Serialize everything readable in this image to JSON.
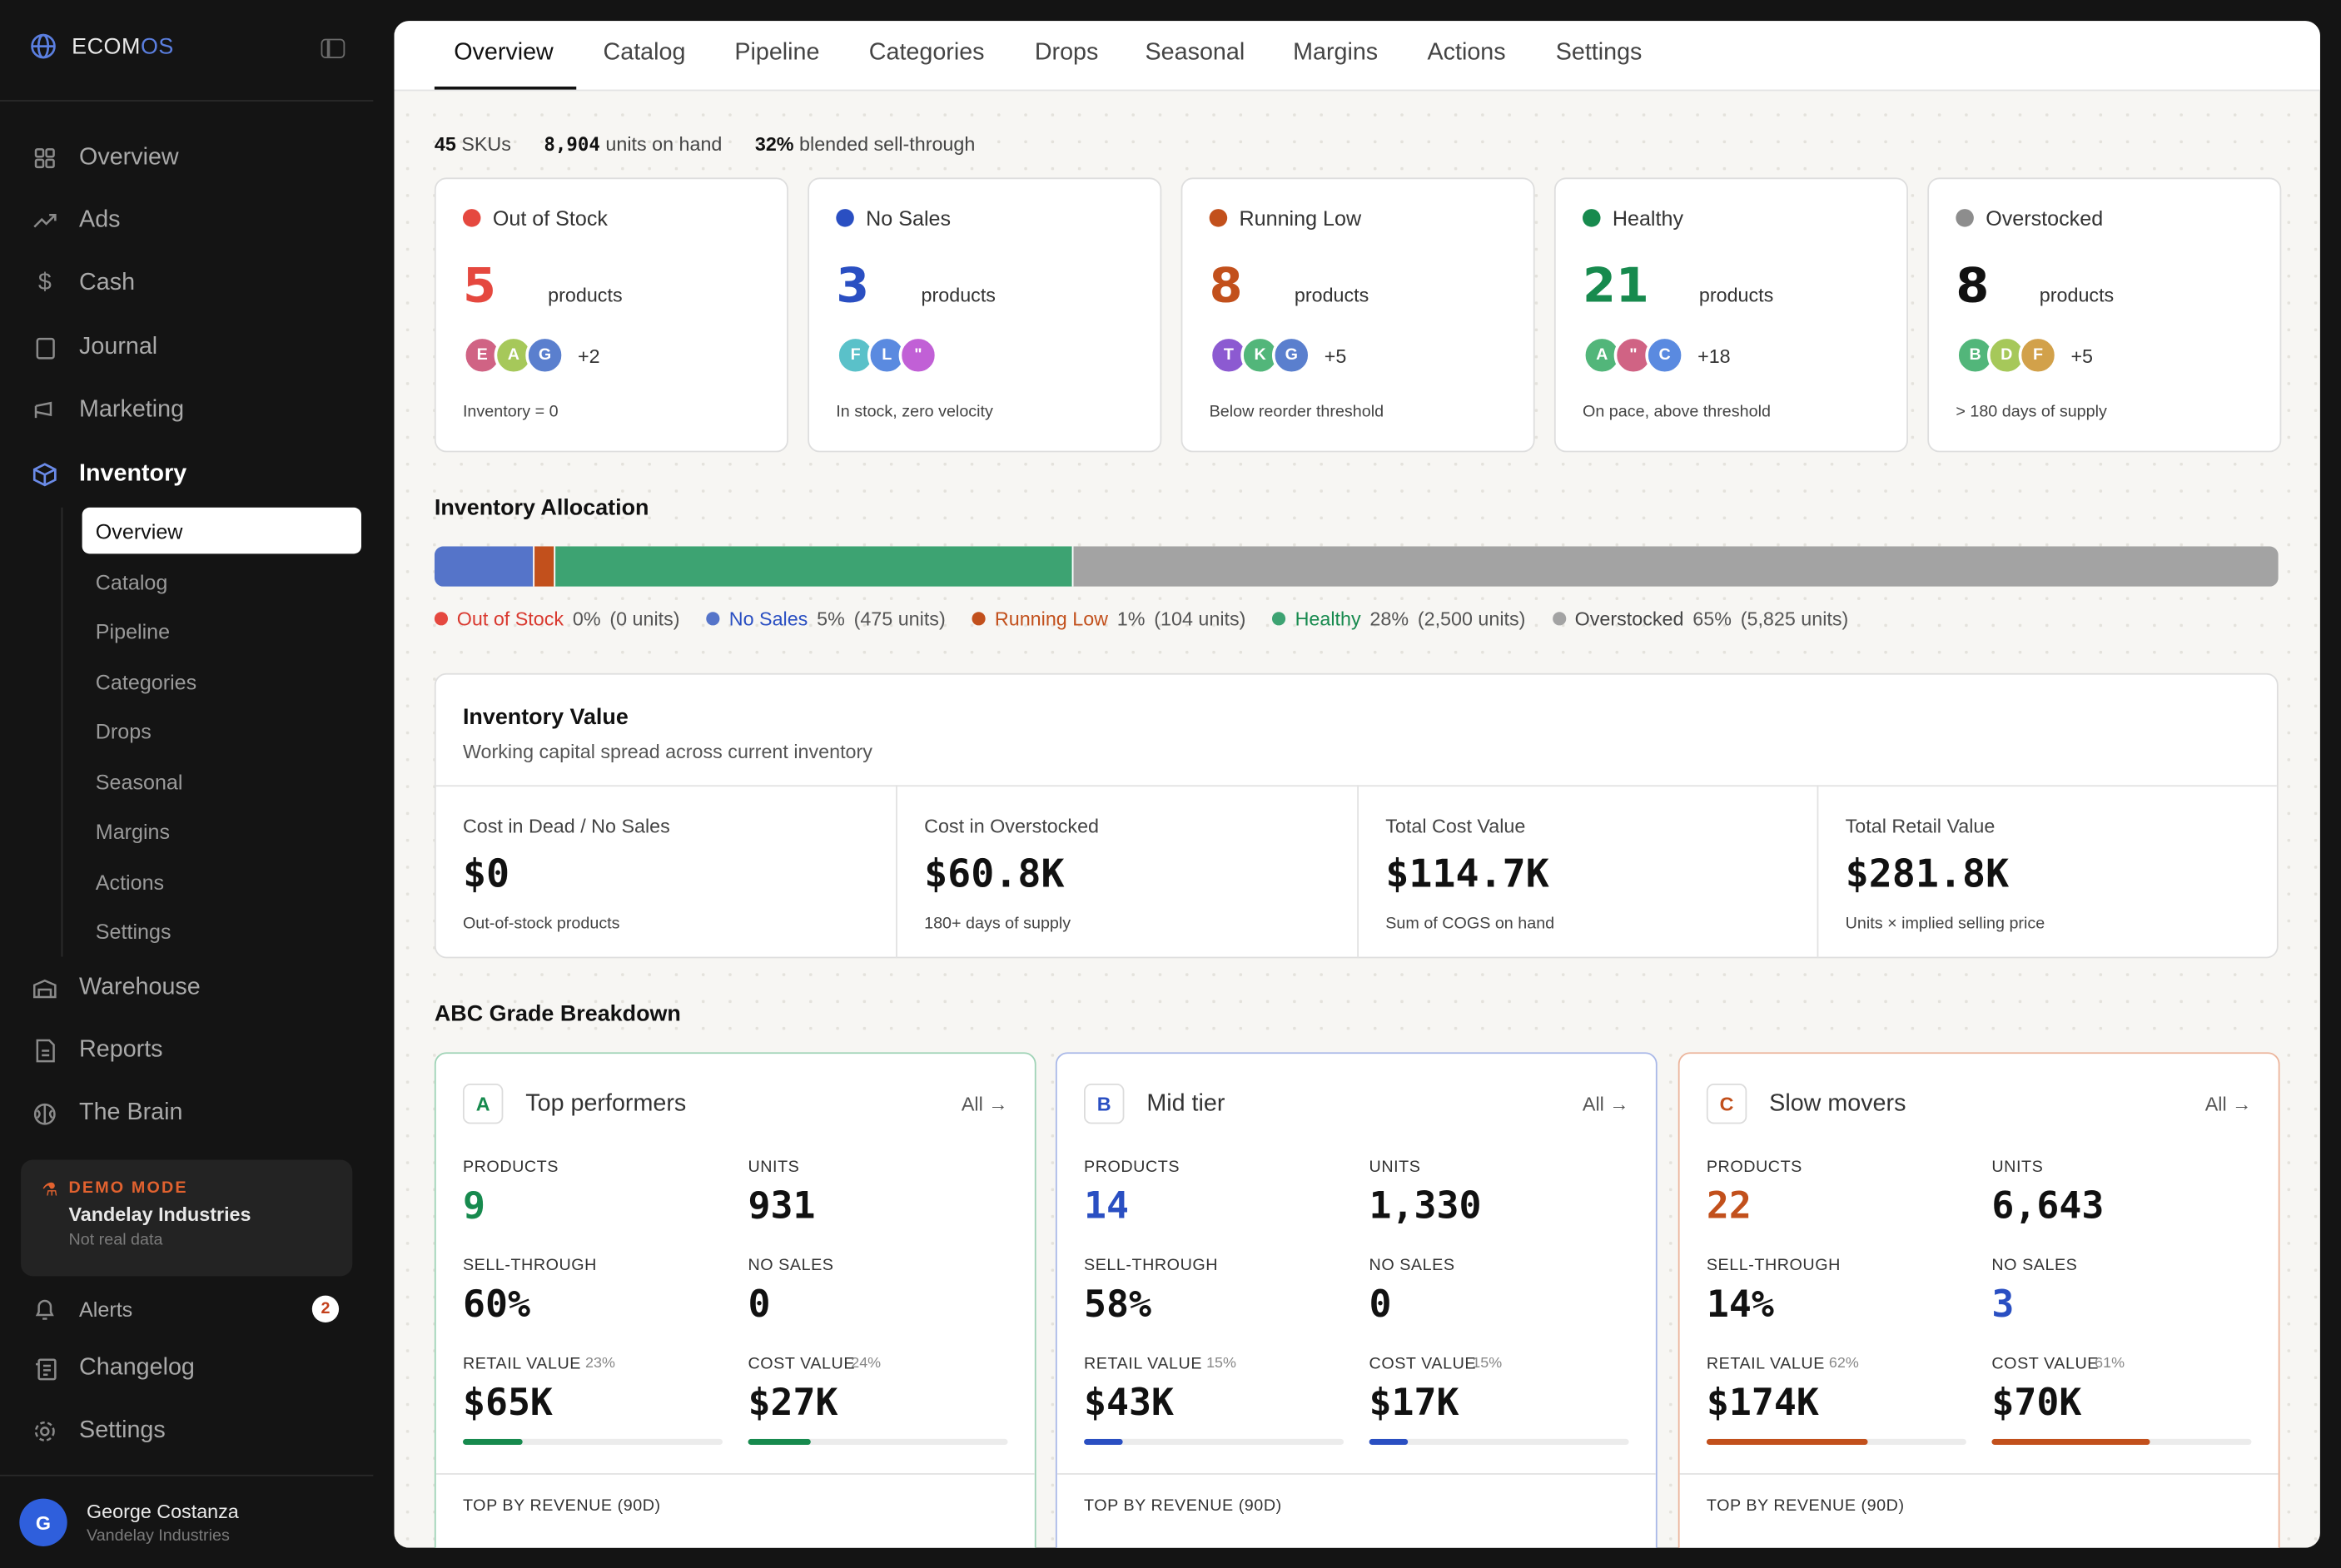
{
  "brand": {
    "prefix": "ECOM",
    "suffix": "OS"
  },
  "sidebar": {
    "items": [
      {
        "label": "Overview",
        "icon": "grid-icon"
      },
      {
        "label": "Ads",
        "icon": "trending-up-icon"
      },
      {
        "label": "Cash",
        "icon": "dollar-icon"
      },
      {
        "label": "Journal",
        "icon": "book-icon"
      },
      {
        "label": "Marketing",
        "icon": "megaphone-icon"
      },
      {
        "label": "Inventory",
        "icon": "box-icon"
      },
      {
        "label": "Warehouse",
        "icon": "warehouse-icon"
      },
      {
        "label": "Reports",
        "icon": "file-icon"
      },
      {
        "label": "The Brain",
        "icon": "brain-icon"
      },
      {
        "label": "Alerts",
        "icon": "bell-icon"
      },
      {
        "label": "Changelog",
        "icon": "changelog-icon"
      },
      {
        "label": "Settings",
        "icon": "gear-icon"
      }
    ],
    "sub_items": [
      "Overview",
      "Catalog",
      "Pipeline",
      "Categories",
      "Drops",
      "Seasonal",
      "Margins",
      "Actions",
      "Settings"
    ],
    "alerts_count": "2",
    "demo": {
      "tag": "DEMO MODE",
      "company": "Vandelay Industries",
      "note": "Not real data"
    },
    "user": {
      "initial": "G",
      "name": "George Costanza",
      "org": "Vandelay Industries"
    }
  },
  "tabs": [
    "Overview",
    "Catalog",
    "Pipeline",
    "Categories",
    "Drops",
    "Seasonal",
    "Margins",
    "Actions",
    "Settings"
  ],
  "summary": {
    "skus": "45",
    "skus_label": "SKUs",
    "units": "8,904",
    "units_label": "units on hand",
    "sell": "32%",
    "sell_label": "blended sell-through"
  },
  "status_cards": [
    {
      "label": "Out of Stock",
      "color": "#e5483f",
      "count": "5",
      "unit": "products",
      "avatars": [
        {
          "l": "E",
          "c": "#d06384"
        },
        {
          "l": "A",
          "c": "#a6c85a"
        },
        {
          "l": "G",
          "c": "#5a7fce"
        }
      ],
      "more": "+2",
      "foot": "Inventory = 0"
    },
    {
      "label": "No Sales",
      "color": "#2a4fc2",
      "count": "3",
      "unit": "products",
      "avatars": [
        {
          "l": "F",
          "c": "#5ac1c9"
        },
        {
          "l": "L",
          "c": "#5a8ae0"
        },
        {
          "l": "\"",
          "c": "#c160d6"
        }
      ],
      "more": "",
      "foot": "In stock, zero velocity"
    },
    {
      "label": "Running Low",
      "color": "#c2501c",
      "count": "8",
      "unit": "products",
      "avatars": [
        {
          "l": "T",
          "c": "#8c5ad1"
        },
        {
          "l": "K",
          "c": "#52b67a"
        },
        {
          "l": "G",
          "c": "#5a7fce"
        }
      ],
      "more": "+5",
      "foot": "Below reorder threshold"
    },
    {
      "label": "Healthy",
      "color": "#178a4e",
      "count": "21",
      "unit": "products",
      "avatars": [
        {
          "l": "A",
          "c": "#52b67a"
        },
        {
          "l": "\"",
          "c": "#d06384"
        },
        {
          "l": "C",
          "c": "#5a8ae0"
        }
      ],
      "more": "+18",
      "foot": "On pace, above threshold"
    },
    {
      "label": "Overstocked",
      "color": "#8d8d8d",
      "count": "8",
      "unit": "products",
      "avatars": [
        {
          "l": "B",
          "c": "#52b67a"
        },
        {
          "l": "D",
          "c": "#a6c85a"
        },
        {
          "l": "F",
          "c": "#d2a14a"
        }
      ],
      "more": "+5",
      "foot": "> 180 days of supply"
    }
  ],
  "allocation": {
    "title": "Inventory Allocation",
    "segments": [
      {
        "name": "Out of Stock",
        "pct": "0%",
        "units": "(0 units)",
        "share": 0,
        "color": "#e5483f",
        "text_color": "#d9392f"
      },
      {
        "name": "No Sales",
        "pct": "5%",
        "units": "(475 units)",
        "share": 5.33,
        "color": "#5574c9",
        "text_color": "#2a4fc2"
      },
      {
        "name": "Running Low",
        "pct": "1%",
        "units": "(104 units)",
        "share": 1.17,
        "color": "#c2501c",
        "text_color": "#c2501c"
      },
      {
        "name": "Healthy",
        "pct": "28%",
        "units": "(2,500 units)",
        "share": 28.08,
        "color": "#3da372",
        "text_color": "#178a4e"
      },
      {
        "name": "Overstocked",
        "pct": "65%",
        "units": "(5,825 units)",
        "share": 65.42,
        "color": "#a3a3a3",
        "text_color": "#444444"
      }
    ]
  },
  "value": {
    "title": "Inventory Value",
    "subtitle": "Working capital spread across current inventory",
    "cells": [
      {
        "label": "Cost in Dead / No Sales",
        "value": "$0",
        "sub": "Out-of-stock products"
      },
      {
        "label": "Cost in Overstocked",
        "value": "$60.8K",
        "sub": "180+ days of supply"
      },
      {
        "label": "Total Cost Value",
        "value": "$114.7K",
        "sub": "Sum of COGS on hand"
      },
      {
        "label": "Total Retail Value",
        "value": "$281.8K",
        "sub": "Units × implied selling price"
      }
    ]
  },
  "abc": {
    "title": "ABC Grade Breakdown",
    "all_label": "All →",
    "labels": {
      "products": "PRODUCTS",
      "units": "UNITS",
      "sell": "SELL-THROUGH",
      "nosales": "NO SALES",
      "retail": "RETAIL VALUE",
      "cost": "COST VALUE",
      "top": "TOP BY REVENUE (90D)"
    },
    "grades": [
      {
        "letter": "A",
        "name": "Top performers",
        "color": "#178a4e",
        "border": "#9fd3b6",
        "products": "9",
        "units": "931",
        "sell": "60%",
        "nosales": "0",
        "nosales_color": "#111111",
        "retail": "$65K",
        "retail_pct": "23%",
        "retail_share": 23,
        "cost": "$27K",
        "cost_pct": "24%",
        "cost_share": 24
      },
      {
        "letter": "B",
        "name": "Mid tier",
        "color": "#2a4fc2",
        "border": "#a9b8e8",
        "products": "14",
        "units": "1,330",
        "sell": "58%",
        "nosales": "0",
        "nosales_color": "#111111",
        "retail": "$43K",
        "retail_pct": "15%",
        "retail_share": 15,
        "cost": "$17K",
        "cost_pct": "15%",
        "cost_share": 15
      },
      {
        "letter": "C",
        "name": "Slow movers",
        "color": "#c2501c",
        "border": "#ecb59c",
        "products": "22",
        "units": "6,643",
        "sell": "14%",
        "nosales": "3",
        "nosales_color": "#2a4fc2",
        "retail": "$174K",
        "retail_pct": "62%",
        "retail_share": 62,
        "cost": "$70K",
        "cost_pct": "61%",
        "cost_share": 61
      }
    ]
  }
}
